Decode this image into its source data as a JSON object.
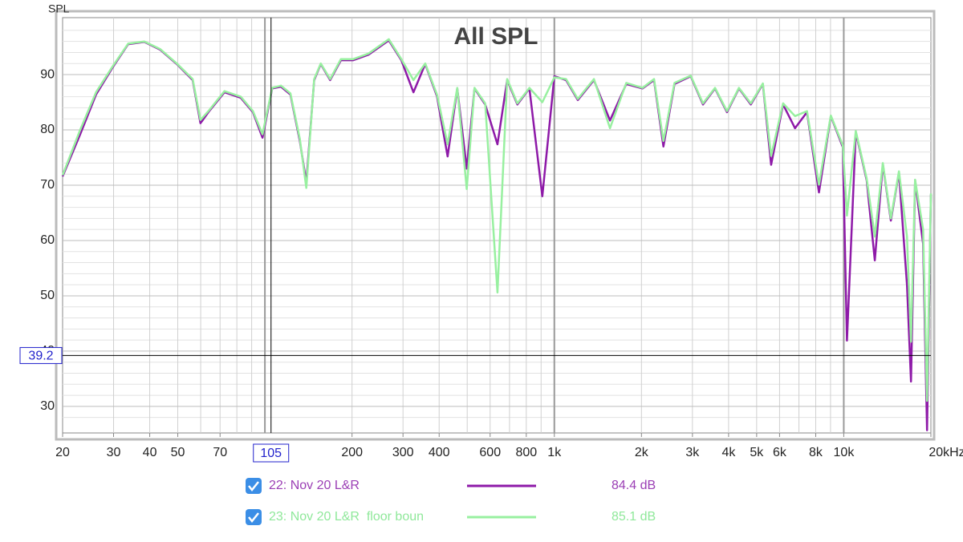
{
  "chart_data": {
    "type": "line",
    "title": "All SPL",
    "y_label": "SPL",
    "xscale": "log",
    "xlim": [
      20,
      20000
    ],
    "ylim": [
      25.2,
      100.3
    ],
    "xticks": [
      20,
      30,
      40,
      50,
      70,
      200,
      300,
      400,
      600,
      800,
      {
        "value": 1000,
        "label": "1k"
      },
      {
        "value": 2000,
        "label": "2k"
      },
      {
        "value": 3000,
        "label": "3k"
      },
      {
        "value": 4000,
        "label": "4k"
      },
      {
        "value": 5000,
        "label": "5k"
      },
      {
        "value": 6000,
        "label": "6k"
      },
      {
        "value": 8000,
        "label": "8k"
      },
      {
        "value": 10000,
        "label": "10k"
      },
      {
        "value": 20000,
        "label": "20kHz"
      }
    ],
    "x_major_grid": [
      100,
      1000,
      10000
    ],
    "x_minor_grid": [
      30,
      40,
      50,
      60,
      70,
      80,
      90,
      200,
      300,
      400,
      500,
      600,
      700,
      800,
      900,
      2000,
      3000,
      4000,
      5000,
      6000,
      7000,
      8000,
      9000
    ],
    "yticks": [
      30,
      40,
      50,
      60,
      70,
      80,
      90
    ],
    "y_minor_grid": [
      28,
      32,
      34,
      36,
      38,
      42,
      44,
      46,
      48,
      52,
      54,
      56,
      58,
      62,
      64,
      66,
      68,
      72,
      74,
      76,
      78,
      82,
      84,
      86,
      88,
      92,
      94,
      96,
      98
    ],
    "cursor_x": 105,
    "cursor_y": 39.2,
    "x": [
      20,
      23,
      26.1,
      29.7,
      33.7,
      38.3,
      43.5,
      49.6,
      56.3,
      59.9,
      63.8,
      72.5,
      82.5,
      90.9,
      98.1,
      106,
      113.6,
      122.5,
      132,
      139,
      148,
      156,
      168,
      183,
      202,
      228,
      268,
      296,
      326,
      358,
      393,
      428,
      462,
      498,
      530,
      577,
      636,
      687,
      745,
      820,
      909,
      1000,
      1098,
      1205,
      1370,
      1557,
      1772,
      2016,
      2210,
      2382,
      2602,
      2960,
      3263,
      3590,
      3949,
      4343,
      4775,
      5252,
      5612,
      6172,
      6788,
      7464,
      8206,
      9022,
      9920,
      10260,
      11000,
      12004,
      12798,
      13645,
      14548,
      15510,
      16536,
      17076,
      17632,
      18798,
      19391,
      20000
    ],
    "series": [
      {
        "name": "22: Nov 20 L&R",
        "color": "#8e1aa8",
        "level": 84.4,
        "level_label": "84.4 dB",
        "values": [
          71.6,
          79.2,
          86.4,
          91.2,
          95.5,
          95.9,
          94.5,
          91.9,
          89,
          81.2,
          83.2,
          86.8,
          85.8,
          83.2,
          78.6,
          87.5,
          87.8,
          86.4,
          78,
          70.5,
          89,
          91.9,
          89,
          92.6,
          92.6,
          93.6,
          96.2,
          92.6,
          86.8,
          91.9,
          86.1,
          75.2,
          87.5,
          73,
          87.5,
          84.6,
          77.4,
          89,
          84.6,
          87.5,
          68,
          89.7,
          89,
          85.4,
          89,
          81.7,
          88.3,
          87.5,
          89,
          77,
          88.3,
          89.7,
          84.6,
          87.5,
          83.2,
          87.5,
          84.6,
          88.3,
          73.7,
          84.6,
          80.3,
          83.2,
          68.7,
          82.5,
          76.9,
          41.9,
          79.6,
          70.9,
          56.4,
          73.8,
          63.6,
          72.3,
          52,
          34.5,
          70.9,
          59.4,
          25.7,
          68.3
        ]
      },
      {
        "name": "23: Nov 20 L&R  floor boun",
        "color": "#98f0a0",
        "level": 85.1,
        "level_label": "85.1 dB",
        "values": [
          71.8,
          80,
          86.8,
          91.4,
          95.6,
          96,
          94.6,
          92,
          89.2,
          81.8,
          83.4,
          87,
          86,
          83.4,
          79.2,
          87.6,
          88,
          86.6,
          78.4,
          69.5,
          89.2,
          92,
          89.2,
          92.8,
          92.8,
          93.8,
          96.4,
          92.8,
          89,
          92,
          86.4,
          77.4,
          87.6,
          69.3,
          87.6,
          84.8,
          50.6,
          89.2,
          84.8,
          87.6,
          85,
          89.5,
          89.2,
          85.6,
          89.2,
          80.3,
          88.5,
          87.6,
          89.2,
          78,
          88.5,
          89.8,
          84.8,
          87.6,
          83.4,
          87.6,
          84.8,
          88.4,
          75.3,
          84.8,
          82.5,
          83.4,
          70.1,
          82.6,
          77.2,
          64.5,
          79.8,
          71.2,
          60.7,
          74,
          64,
          72.5,
          60.7,
          41.7,
          71,
          62,
          31,
          68.5
        ]
      }
    ]
  }
}
